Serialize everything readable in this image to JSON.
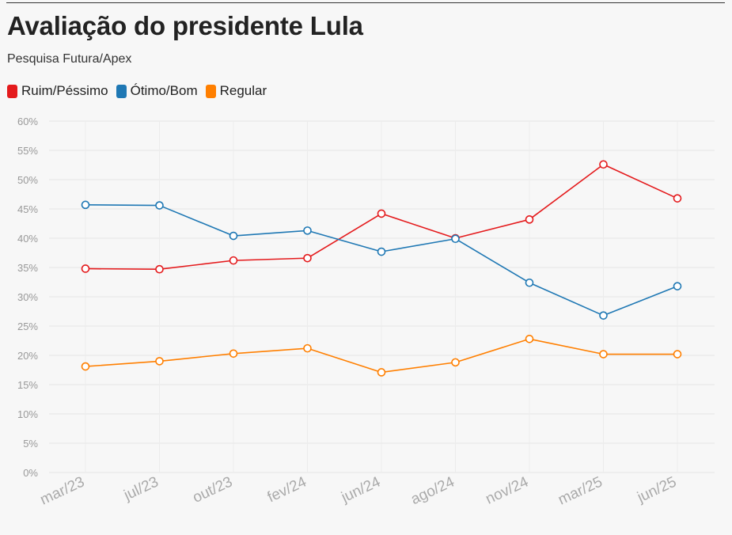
{
  "title": "Avaliação do presidente Lula",
  "subtitle": "Pesquisa Futura/Apex",
  "chart_data": {
    "type": "line",
    "categories": [
      "mar/23",
      "jul/23",
      "out/23",
      "fev/24",
      "jun/24",
      "ago/24",
      "nov/24",
      "mar/25",
      "jun/25"
    ],
    "y_ticks": [
      "0%",
      "5%",
      "10%",
      "15%",
      "20%",
      "25%",
      "30%",
      "35%",
      "40%",
      "45%",
      "50%",
      "55%",
      "60%"
    ],
    "ylim": [
      0,
      60
    ],
    "grid": true,
    "legend_position": "top-left",
    "series": [
      {
        "name": "Ruim/Péssimo",
        "color": "#e41a1c",
        "values": [
          34.8,
          34.7,
          36.2,
          36.6,
          44.2,
          40.0,
          43.2,
          52.6,
          46.8
        ]
      },
      {
        "name": "Ótimo/Bom",
        "color": "#1f78b4",
        "values": [
          45.7,
          45.6,
          40.4,
          41.3,
          37.7,
          39.9,
          32.4,
          26.8,
          31.8
        ]
      },
      {
        "name": "Regular",
        "color": "#ff7f00",
        "values": [
          18.1,
          19.0,
          20.3,
          21.2,
          17.1,
          18.8,
          22.8,
          20.2,
          20.2
        ]
      }
    ]
  }
}
